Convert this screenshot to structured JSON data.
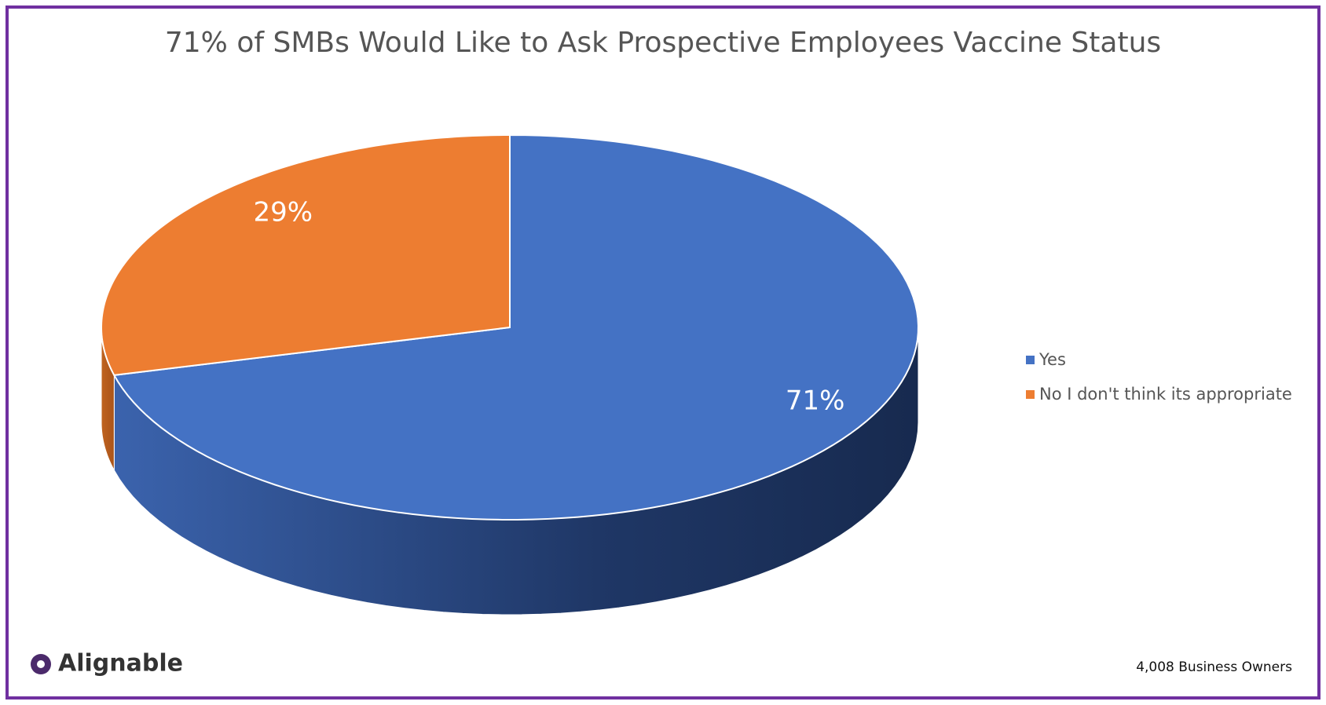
{
  "chart_data": {
    "type": "pie",
    "title": "71% of SMBs Would Like to Ask Prospective Employees Vaccine Status",
    "categories": [
      "Yes",
      "No I don't think its appropriate"
    ],
    "values": [
      71,
      29
    ],
    "value_labels": [
      "71%",
      "29%"
    ],
    "colors": [
      "#4472c4",
      "#ed7d31"
    ],
    "legend": "right",
    "note": "4,008 Business Owners",
    "brand": "Alignable"
  }
}
